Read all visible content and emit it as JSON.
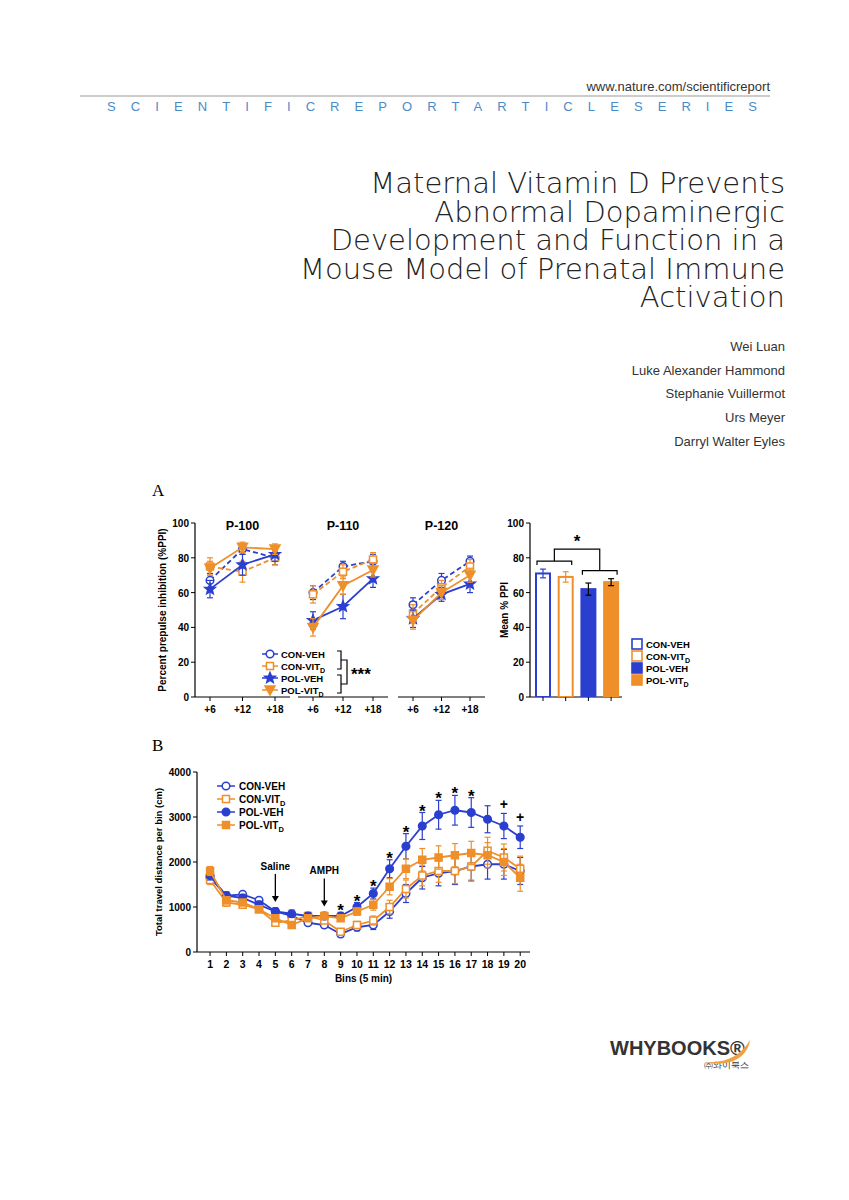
{
  "header": {
    "url": "www.nature.com/scientificreport",
    "series_name": "SCIENTIFICREPORTARTICLESERIES"
  },
  "title_lines": [
    "Maternal Vitamin D Prevents",
    "Abnormal Dopaminergic",
    "Development and Function in a",
    "Mouse Model of Prenatal Immune",
    "Activation"
  ],
  "authors": [
    "Wei Luan",
    "Luke Alexander Hammond",
    "Stephanie Vuillermot",
    "Urs Meyer",
    "Darryl Walter Eyles"
  ],
  "publisher": {
    "name": "WHYBOOKS®",
    "korean_name": "㈜와이북스"
  },
  "chart_data": [
    {
      "type": "line",
      "panel": "A",
      "title": "P-100",
      "y_label": "Percent prepulse inhibition (%PPI)",
      "categories": [
        "+6",
        "+12",
        "+18"
      ],
      "ylim": [
        0,
        100
      ],
      "yticks": [
        0,
        20,
        40,
        60,
        80,
        100
      ],
      "series": [
        {
          "color": "#2b3fcf",
          "marker": "circle-open",
          "line_style": "dashed",
          "values": [
            67,
            85,
            80
          ],
          "errors": [
            4,
            3,
            4
          ]
        },
        {
          "color": "#ee8f2a",
          "marker": "square-open",
          "line_style": "dashed",
          "values": [
            75,
            72,
            80
          ],
          "errors": [
            5,
            6,
            4
          ]
        },
        {
          "color": "#2b3fcf",
          "marker": "star",
          "line_style": "solid",
          "values": [
            62,
            76,
            82
          ],
          "errors": [
            5,
            6,
            4
          ]
        },
        {
          "color": "#ee8f2a",
          "marker": "triangle",
          "line_style": "solid",
          "values": [
            74,
            86,
            85
          ],
          "errors": [
            4,
            3,
            3
          ]
        }
      ]
    },
    {
      "type": "line",
      "title": "P-110",
      "categories": [
        "+6",
        "+12",
        "+18"
      ],
      "ylim": [
        0,
        100
      ],
      "tick_labels": "x",
      "legend": "lower left",
      "annotations": [
        {
          "text": "***"
        }
      ],
      "series": [
        {
          "name": "CON-VEH",
          "color": "#2b3fcf",
          "marker": "circle-open",
          "line_style": "dashed",
          "values": [
            60,
            75,
            78
          ],
          "errors": [
            4,
            3,
            4
          ]
        },
        {
          "name": "CON-VITD",
          "color": "#ee8f2a",
          "marker": "square-open",
          "line_style": "dashed",
          "values": [
            59,
            72,
            79
          ],
          "errors": [
            5,
            4,
            4
          ]
        },
        {
          "name": "POL-VEH",
          "color": "#2b3fcf",
          "marker": "star",
          "line_style": "solid",
          "values": [
            44,
            52,
            68
          ],
          "errors": [
            5,
            7,
            5
          ]
        },
        {
          "name": "POL-VITD",
          "color": "#ee8f2a",
          "marker": "triangle",
          "line_style": "solid",
          "values": [
            40,
            64,
            73
          ],
          "errors": [
            5,
            5,
            4
          ]
        }
      ]
    },
    {
      "type": "line",
      "title": "P-120",
      "categories": [
        "+6",
        "+12",
        "+18"
      ],
      "ylim": [
        0,
        100
      ],
      "tick_labels": "x",
      "series": [
        {
          "color": "#2b3fcf",
          "marker": "circle-open",
          "line_style": "dashed",
          "values": [
            53,
            67,
            78
          ],
          "errors": [
            4,
            4,
            3
          ]
        },
        {
          "color": "#ee8f2a",
          "marker": "square-open",
          "line_style": "dashed",
          "values": [
            48,
            63,
            75
          ],
          "errors": [
            5,
            4,
            4
          ]
        },
        {
          "color": "#2b3fcf",
          "marker": "star",
          "line_style": "solid",
          "values": [
            45,
            59,
            65
          ],
          "errors": [
            5,
            4,
            5
          ]
        },
        {
          "color": "#ee8f2a",
          "marker": "triangle",
          "line_style": "solid",
          "values": [
            44,
            60,
            70
          ],
          "errors": [
            5,
            4,
            4
          ]
        }
      ]
    },
    {
      "type": "bar",
      "y_label": "Mean % PPI",
      "categories": [
        "CON-VEH",
        "CON-VITD",
        "POL-VEH",
        "POL-VITD"
      ],
      "values": [
        71,
        69,
        62,
        66
      ],
      "errors": [
        2.5,
        3,
        3.5,
        2
      ],
      "colors": [
        "#2b3fcf",
        "#ee8f2a",
        "#2b3fcf",
        "#ee8f2a"
      ],
      "ylim": [
        0,
        100
      ],
      "yticks": [
        0,
        20,
        40,
        60,
        80,
        100
      ],
      "tick_labels": "y",
      "legend": "right",
      "annotations": [
        {
          "text": "*"
        }
      ]
    },
    {
      "type": "line",
      "panel": "B",
      "x_label": "Bins (5 min)",
      "y_label": "Total travel distance per bin (cm)",
      "x": [
        1,
        2,
        3,
        4,
        5,
        6,
        7,
        8,
        9,
        10,
        11,
        12,
        13,
        14,
        15,
        16,
        17,
        18,
        19,
        20
      ],
      "xlim": [
        0.2,
        20.6
      ],
      "xticks": [
        1,
        2,
        3,
        4,
        5,
        6,
        7,
        8,
        9,
        10,
        11,
        12,
        13,
        14,
        15,
        16,
        17,
        18,
        19,
        20
      ],
      "ylim": [
        0,
        4000
      ],
      "yticks": [
        0,
        1000,
        2000,
        3000,
        4000
      ],
      "legend": "upper left",
      "events": [
        {
          "x": 5,
          "label": "Saline"
        },
        {
          "x": 8,
          "label": "AMPH"
        }
      ],
      "annotations": [
        {
          "x": 9,
          "text": "*"
        },
        {
          "x": 10,
          "text": "*"
        },
        {
          "x": 11,
          "text": "*"
        },
        {
          "x": 12,
          "text": "*"
        },
        {
          "x": 13,
          "text": "*"
        },
        {
          "x": 14,
          "text": "*"
        },
        {
          "x": 15,
          "text": "*"
        },
        {
          "x": 16,
          "text": "*"
        },
        {
          "x": 17,
          "text": "*"
        },
        {
          "x": 19,
          "text": "+"
        },
        {
          "x": 20,
          "text": "+"
        }
      ],
      "series": [
        {
          "name": "CON-VEH",
          "color": "#2b3fcf",
          "marker": "circle-open",
          "line_style": "solid",
          "values": [
            1650,
            1250,
            1280,
            1150,
            900,
            800,
            650,
            600,
            400,
            550,
            600,
            900,
            1300,
            1650,
            1750,
            1800,
            1900,
            1950,
            1950,
            1800
          ],
          "errors": [
            100,
            80,
            60,
            60,
            60,
            60,
            60,
            60,
            60,
            80,
            100,
            150,
            200,
            250,
            280,
            300,
            320,
            330,
            330,
            300
          ]
        },
        {
          "name": "CON-VITD",
          "color": "#ee8f2a",
          "marker": "square-open",
          "line_style": "solid",
          "values": [
            1600,
            1100,
            1050,
            950,
            650,
            700,
            800,
            700,
            450,
            600,
            700,
            1000,
            1400,
            1700,
            1800,
            1800,
            1900,
            2250,
            2100,
            1850
          ],
          "errors": [
            100,
            80,
            60,
            60,
            60,
            60,
            60,
            60,
            60,
            80,
            100,
            150,
            200,
            230,
            250,
            280,
            300,
            300,
            300,
            280
          ]
        },
        {
          "name": "POL-VEH",
          "color": "#2b3fcf",
          "marker": "circle",
          "line_style": "solid",
          "values": [
            1700,
            1250,
            1200,
            1050,
            900,
            850,
            800,
            800,
            800,
            1000,
            1300,
            1850,
            2350,
            2800,
            3050,
            3150,
            3100,
            2950,
            2800,
            2550
          ],
          "errors": [
            100,
            80,
            80,
            80,
            80,
            80,
            80,
            80,
            80,
            100,
            120,
            200,
            280,
            300,
            320,
            330,
            330,
            300,
            280,
            250
          ]
        },
        {
          "name": "POL-VITD",
          "color": "#ee8f2a",
          "marker": "square",
          "line_style": "solid",
          "values": [
            1800,
            1150,
            1100,
            950,
            750,
            600,
            750,
            800,
            750,
            900,
            1050,
            1450,
            1850,
            2050,
            2100,
            2150,
            2200,
            2150,
            2000,
            1650
          ],
          "errors": [
            100,
            80,
            60,
            60,
            60,
            60,
            60,
            60,
            60,
            80,
            120,
            180,
            220,
            250,
            260,
            260,
            260,
            280,
            300,
            300
          ]
        }
      ]
    }
  ]
}
